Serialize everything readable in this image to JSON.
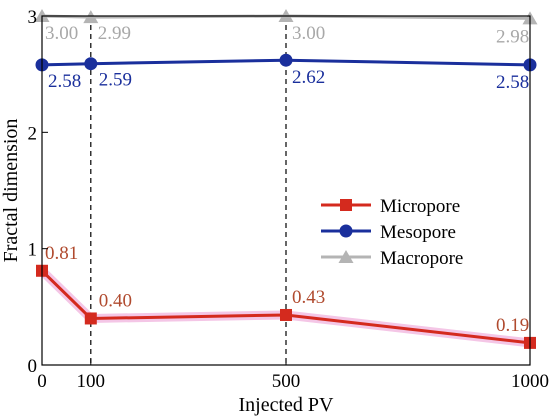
{
  "chart_data": {
    "type": "line",
    "title": "",
    "xlabel": "Injected PV",
    "ylabel": "Fractal dimension",
    "x": [
      0,
      100,
      500,
      1000
    ],
    "x_tick_labels": [
      "0",
      "100",
      "500",
      "1000"
    ],
    "y_ticks": [
      0,
      1,
      2,
      3
    ],
    "y_tick_labels": [
      "0",
      "1",
      "2",
      "3"
    ],
    "xlim": [
      0,
      1000
    ],
    "ylim": [
      0,
      3
    ],
    "grid": false,
    "legend_position": "center-right",
    "reference_lines": [
      100,
      500
    ],
    "series": [
      {
        "name": "Micropore",
        "values": [
          0.81,
          0.4,
          0.43,
          0.19
        ],
        "labels": [
          "0.81",
          "0.40",
          "0.43",
          "0.19"
        ],
        "color": "#d42a1e",
        "label_color": "#b04a2e",
        "marker": "square"
      },
      {
        "name": "Mesopore",
        "values": [
          2.58,
          2.59,
          2.62,
          2.58
        ],
        "labels": [
          "2.58",
          "2.59",
          "2.62",
          "2.58"
        ],
        "color": "#1a2f9c",
        "label_color": "#1a2f9c",
        "marker": "circle"
      },
      {
        "name": "Macropore",
        "values": [
          3.0,
          2.99,
          3.0,
          2.98
        ],
        "labels": [
          "3.00",
          "2.99",
          "3.00",
          "2.98"
        ],
        "color": "#b4b4b4",
        "label_color": "#a8a8a8",
        "marker": "triangle"
      }
    ]
  }
}
